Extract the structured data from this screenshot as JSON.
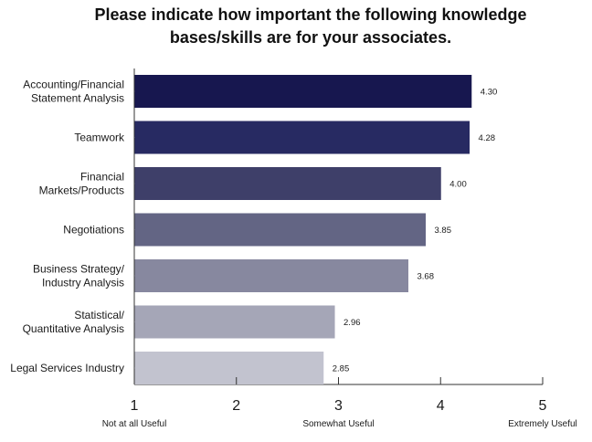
{
  "chart_data": {
    "type": "bar",
    "orientation": "horizontal",
    "title_lines": [
      "Please indicate how important the following knowledge",
      "bases/skills are for your associates."
    ],
    "categories": [
      [
        "Accounting/Financial",
        "Statement Analysis"
      ],
      [
        "Teamwork"
      ],
      [
        "Financial",
        "Markets/Products"
      ],
      [
        "Negotiations"
      ],
      [
        "Business Strategy/",
        "Industry Analysis"
      ],
      [
        "Statistical/",
        "Quantitative Analysis"
      ],
      [
        "Legal Services Industry"
      ]
    ],
    "values": [
      4.3,
      4.28,
      4.0,
      3.85,
      3.68,
      2.96,
      2.85
    ],
    "value_labels": [
      "4.30",
      "4.28",
      "4.00",
      "3.85",
      "3.68",
      "2.96",
      "2.85"
    ],
    "bar_colors": [
      "#17174f",
      "#272a62",
      "#3e3f69",
      "#636584",
      "#87889f",
      "#a5a6b7",
      "#c2c3cf"
    ],
    "xlim": [
      1,
      5
    ],
    "x_ticks": [
      "1",
      "2",
      "3",
      "4",
      "5"
    ],
    "scale_anchors": [
      {
        "value": 1,
        "label": "Not at all Useful"
      },
      {
        "value": 3,
        "label": "Somewhat Useful"
      },
      {
        "value": 5,
        "label": "Extremely Useful"
      }
    ],
    "grid": false,
    "legend": "none"
  }
}
